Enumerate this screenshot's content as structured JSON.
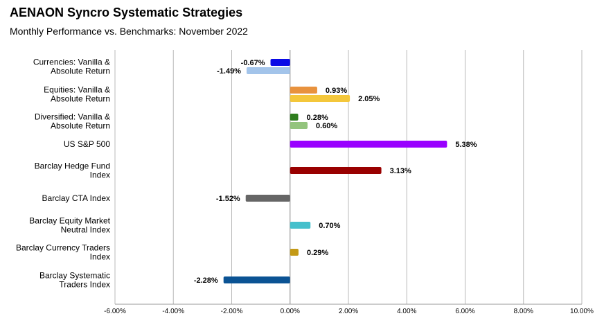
{
  "chart_data": {
    "type": "bar",
    "orientation": "horizontal",
    "title": "AENAON Syncro Systematic Strategies",
    "subtitle": "Monthly Performance vs. Benchmarks: November 2022",
    "xlim": [
      -6,
      10
    ],
    "ticks": [
      -6,
      -4,
      -2,
      0,
      2,
      4,
      6,
      8,
      10
    ],
    "tick_labels": [
      "-6.00%",
      "-4.00%",
      "-2.00%",
      "0.00%",
      "2.00%",
      "4.00%",
      "6.00%",
      "8.00%",
      "10.00%"
    ],
    "grid": true,
    "categories": [
      {
        "label_lines": [
          "Currencies: Vanilla &",
          "Absolute Return"
        ],
        "bars": [
          {
            "value": -0.67,
            "label": "-0.67%",
            "color": "#0a0ae6"
          },
          {
            "value": -1.49,
            "label": "-1.49%",
            "color": "#a3c4ea"
          }
        ]
      },
      {
        "label_lines": [
          "Equities: Vanilla &",
          "Absolute Return"
        ],
        "bars": [
          {
            "value": 0.93,
            "label": "0.93%",
            "color": "#e8923e"
          },
          {
            "value": 2.05,
            "label": "2.05%",
            "color": "#f4c73b"
          }
        ]
      },
      {
        "label_lines": [
          "Diversified: Vanilla &",
          "Absolute Return"
        ],
        "bars": [
          {
            "value": 0.28,
            "label": "0.28%",
            "color": "#2e7d1e"
          },
          {
            "value": 0.6,
            "label": "0.60%",
            "color": "#93c47d"
          }
        ]
      },
      {
        "label_lines": [
          "US S&P 500"
        ],
        "bars": [
          {
            "value": 5.38,
            "label": "5.38%",
            "color": "#9900ff"
          }
        ]
      },
      {
        "label_lines": [
          "Barclay Hedge Fund",
          "Index"
        ],
        "bars": [
          {
            "value": 3.13,
            "label": "3.13%",
            "color": "#990000"
          }
        ]
      },
      {
        "label_lines": [
          "Barclay CTA Index"
        ],
        "bars": [
          {
            "value": -1.52,
            "label": "-1.52%",
            "color": "#666666"
          }
        ]
      },
      {
        "label_lines": [
          "Barclay Equity Market",
          "Neutral Index"
        ],
        "bars": [
          {
            "value": 0.7,
            "label": "0.70%",
            "color": "#45c0cc"
          }
        ]
      },
      {
        "label_lines": [
          "Barclay Currency Traders",
          "Index"
        ],
        "bars": [
          {
            "value": 0.29,
            "label": "0.29%",
            "color": "#c49a16"
          }
        ]
      },
      {
        "label_lines": [
          "Barclay Systematic",
          "Traders Index"
        ],
        "bars": [
          {
            "value": -2.28,
            "label": "-2.28%",
            "color": "#0b5394"
          }
        ]
      }
    ]
  }
}
